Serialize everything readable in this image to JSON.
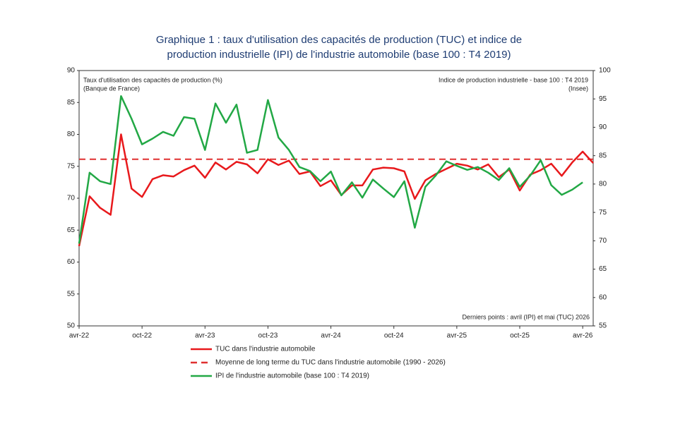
{
  "chart_data": {
    "type": "line",
    "title": [
      "Graphique 1 : taux d'utilisation des capacités de production (TUC) et indice de",
      "production industrielle (IPI) de l'industrie automobile (base 100 : T4 2019)"
    ],
    "y_label": [
      "Taux d'utilisation des capacités de production (%)",
      "(Banque de France)"
    ],
    "y2_label": [
      "Indice de production industrielle - base 100 : T4 2019",
      "(Insee)"
    ],
    "annotation": "Derniers points : avril (IPI) et mai (TUC) 2026",
    "categories": [
      "avr-22",
      null,
      null,
      null,
      null,
      null,
      "oct-22",
      null,
      null,
      null,
      null,
      null,
      "avr-23",
      null,
      null,
      null,
      null,
      null,
      "oct-23",
      null,
      null,
      null,
      null,
      null,
      "avr-24",
      null,
      null,
      null,
      null,
      null,
      "oct-24",
      null,
      null,
      null,
      null,
      null,
      "avr-25",
      null,
      null,
      null,
      null,
      null,
      "oct-25",
      null,
      null,
      null,
      null,
      null,
      "avr-26",
      null
    ],
    "series": [
      {
        "name": "TUC dans l'industrie automobile",
        "color": "#e8191c",
        "axis": "y",
        "values": [
          62.5,
          70.3,
          68.5,
          67.4,
          80.0,
          71.5,
          70.2,
          73.0,
          73.6,
          73.4,
          74.4,
          75.1,
          73.2,
          75.6,
          74.5,
          75.7,
          75.3,
          73.9,
          76.1,
          75.2,
          75.9,
          73.8,
          74.2,
          71.9,
          72.8,
          70.5,
          72.0,
          72.0,
          74.5,
          74.8,
          74.7,
          74.2,
          69.9,
          72.8,
          73.8,
          74.6,
          75.4,
          75.1,
          74.5,
          75.3,
          73.3,
          74.5,
          71.2,
          73.7,
          74.4,
          75.4,
          73.5,
          75.6,
          77.3,
          75.5
        ]
      },
      {
        "name": "IPI de l'industrie automobile (base 100 : T4 2019)",
        "color": "#22a845",
        "axis": "y2",
        "values": [
          69.5,
          82.0,
          80.5,
          80.0,
          95.5,
          91.5,
          87.0,
          88.0,
          89.2,
          88.5,
          91.8,
          91.5,
          86.0,
          94.2,
          90.8,
          94.0,
          85.5,
          86.0,
          94.8,
          88.2,
          86.0,
          83.0,
          82.3,
          80.5,
          82.2,
          78.0,
          80.3,
          77.6,
          80.8,
          79.2,
          77.7,
          80.5,
          72.3,
          79.5,
          81.5,
          84.0,
          83.2,
          82.5,
          83.0,
          82.0,
          80.7,
          82.8,
          79.5,
          81.5,
          84.2,
          79.8,
          78.1,
          79.0,
          80.3,
          null
        ]
      }
    ],
    "reference_line": {
      "name": "Moyenne de long terme du TUC dans l'industrie automobile (1990 - 2026)",
      "value": 76.1,
      "color": "#e03030"
    },
    "ylim": [
      50,
      90
    ],
    "yticks": [
      50,
      55,
      60,
      65,
      70,
      75,
      80,
      85,
      90
    ],
    "y2lim": [
      55,
      100
    ],
    "y2ticks": [
      55,
      60,
      65,
      70,
      75,
      80,
      85,
      90,
      95,
      100
    ]
  }
}
